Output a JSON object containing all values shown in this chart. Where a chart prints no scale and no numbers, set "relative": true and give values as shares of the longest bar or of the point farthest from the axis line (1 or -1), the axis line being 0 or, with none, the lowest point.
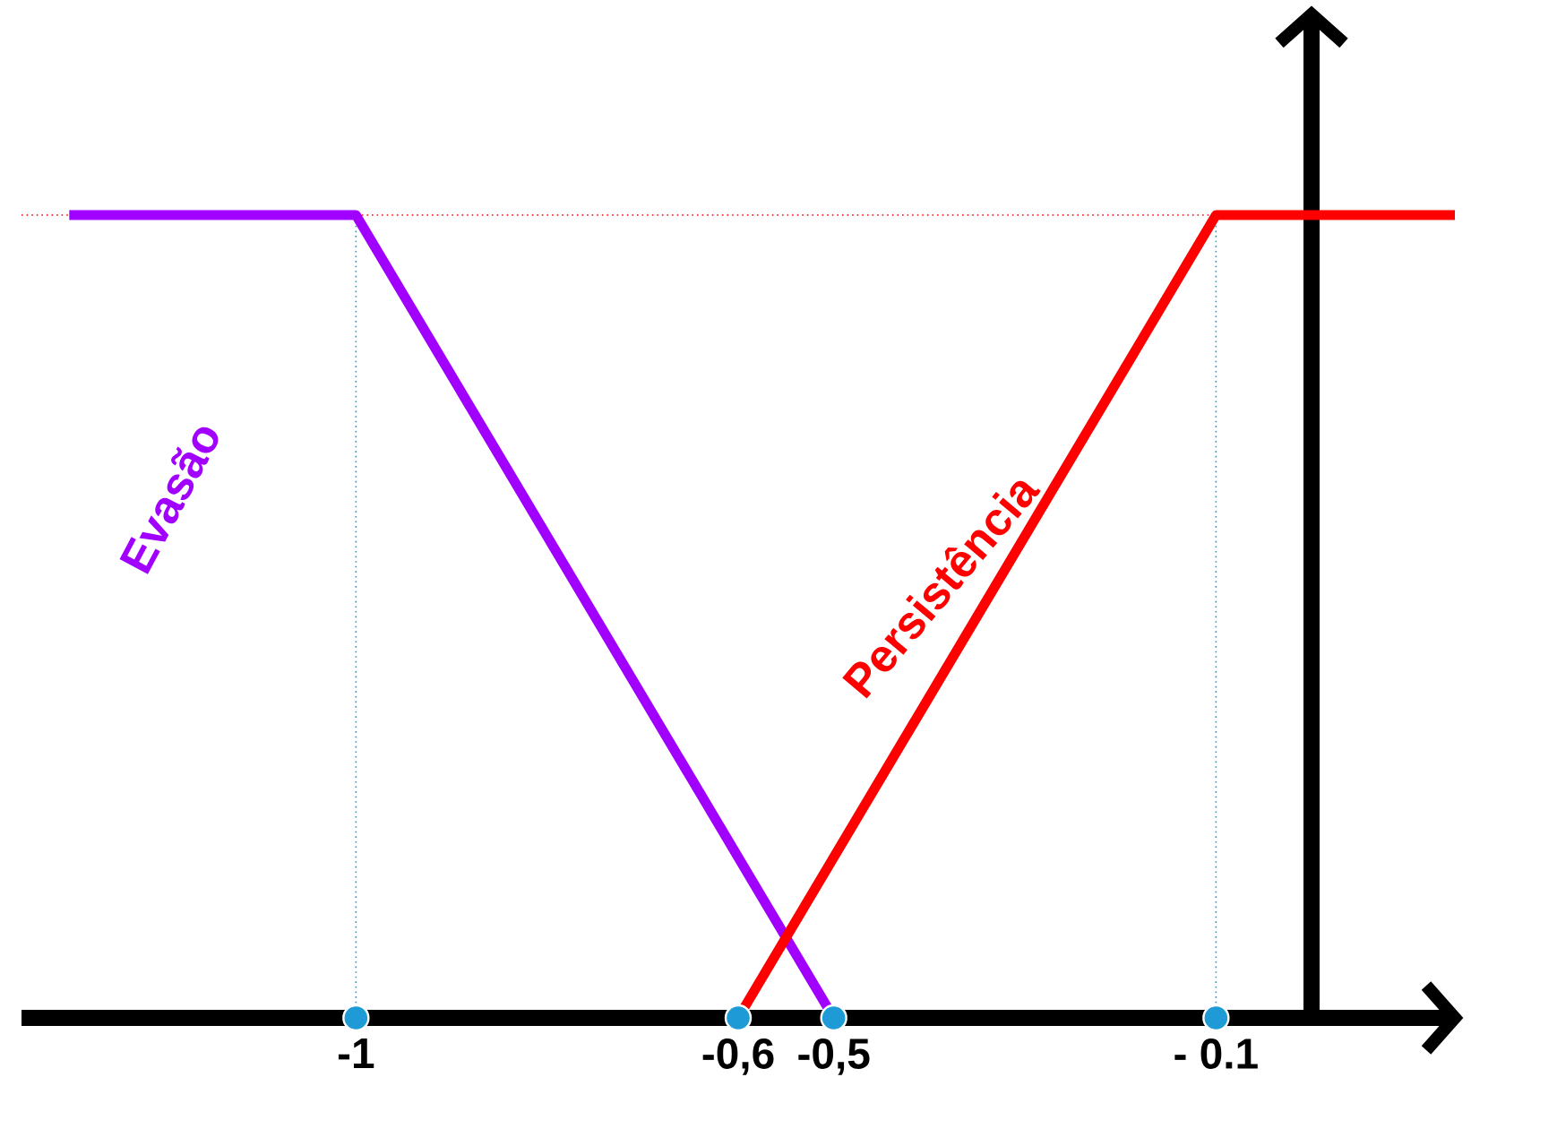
{
  "chart_data": {
    "type": "line",
    "relative": true,
    "xlim": [
      -1.35,
      0.15
    ],
    "xticks": [
      {
        "value": -1,
        "label": "-1"
      },
      {
        "value": -0.6,
        "label": "-0,6"
      },
      {
        "value": -0.5,
        "label": "-0,5"
      },
      {
        "value": -0.1,
        "label": "- 0.1"
      }
    ],
    "series": [
      {
        "name": "Evasão",
        "color": "#a100ff",
        "x": [
          -1.3,
          -1,
          -0.5
        ],
        "values": [
          1,
          1,
          0
        ]
      },
      {
        "name": "Persistência",
        "color": "#ff0000",
        "x": [
          -0.6,
          -0.1,
          0.15
        ],
        "values": [
          0,
          1,
          1
        ]
      },
      {
        "type": "scatter",
        "marker": "circle",
        "color": "#1e9ad6",
        "x": [
          -1,
          -0.6,
          -0.5,
          -0.1
        ],
        "values": [
          0,
          0,
          0,
          0
        ]
      }
    ],
    "ref_lines": [
      {
        "axis": "y",
        "value": 1,
        "color": "#ff0000",
        "line_style": "dotted"
      },
      {
        "axis": "x",
        "value": -1,
        "color": "#1e9ad6",
        "line_style": "dotted"
      },
      {
        "axis": "x",
        "value": -0.1,
        "color": "#1e9ad6",
        "line_style": "dotted"
      }
    ],
    "grid": false,
    "marker": "none",
    "line_style": "solid"
  }
}
